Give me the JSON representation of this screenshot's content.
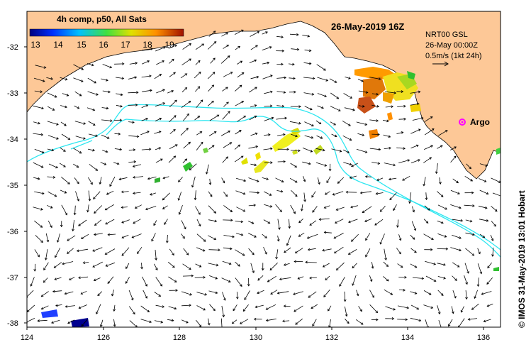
{
  "title": "26-May-2019 16Z",
  "colorbar": {
    "label": "4h comp, p50, All Sats",
    "ticks": [
      "13",
      "14",
      "15",
      "16",
      "17",
      "18",
      "19"
    ],
    "colors": [
      "#000080",
      "#0050ff",
      "#00c0ff",
      "#40e040",
      "#e0e000",
      "#ff9000",
      "#a01000"
    ]
  },
  "info": {
    "line1": "NRT00 GSL",
    "line2": "26-May 00:00Z",
    "line3": "0.5m/s (1kt 24h)"
  },
  "argo_label": "Argo",
  "credit": "© IMOS 31-May-2019 13:01 Hobart",
  "axes": {
    "x_ticks": [
      "124",
      "126",
      "128",
      "130",
      "132",
      "134",
      "136"
    ],
    "y_ticks": [
      "-32",
      "-33",
      "-34",
      "-35",
      "-36",
      "-37",
      "-38"
    ]
  },
  "colors": {
    "land": "#fdc897",
    "contour": "#2ee6f0",
    "argo": "#ff00ff"
  }
}
